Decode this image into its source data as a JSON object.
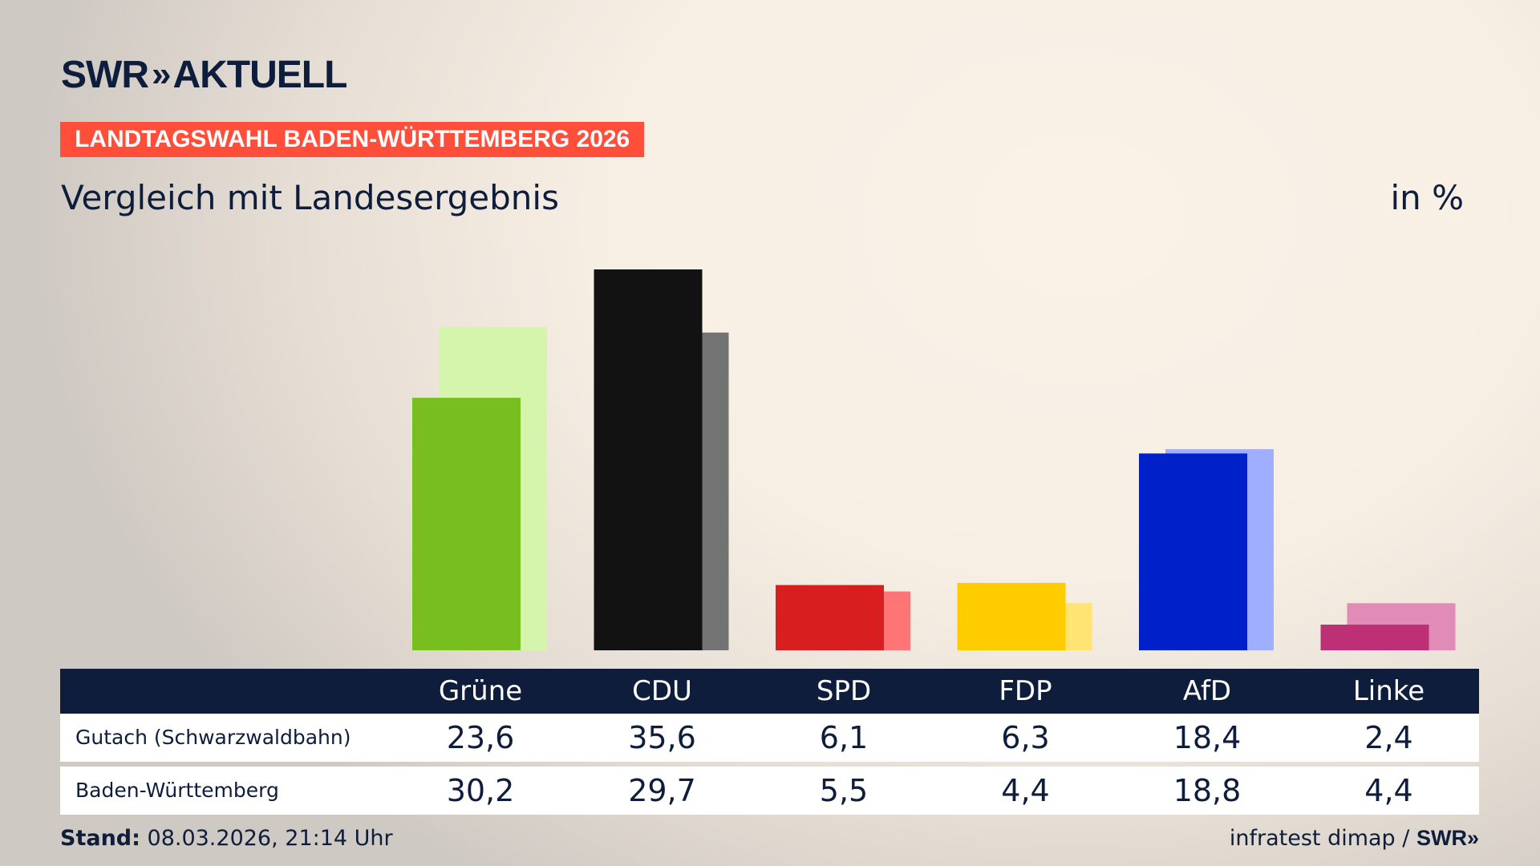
{
  "header": {
    "logo": "SWR AKTUELL",
    "logo_parts": [
      "SWR",
      "»",
      "AKTUELL"
    ],
    "banner": "LANDTAGSWAHL BADEN-WÜRTTEMBERG 2026",
    "subtitle": "Vergleich mit Landesergebnis",
    "unit": "in %"
  },
  "chart_data": {
    "type": "bar",
    "title": "Vergleich mit Landesergebnis",
    "ylabel": "in %",
    "categories": [
      "Grüne",
      "CDU",
      "SPD",
      "FDP",
      "AfD",
      "Linke"
    ],
    "series": [
      {
        "name": "Gutach (Schwarzwaldbahn)",
        "values": [
          23.6,
          35.6,
          6.1,
          6.3,
          18.4,
          2.4
        ],
        "colors": [
          "#78BE1E",
          "#121212",
          "#D81E1E",
          "#FFCC00",
          "#0021C9",
          "#BE3075"
        ]
      },
      {
        "name": "Baden-Württemberg",
        "values": [
          30.2,
          29.7,
          5.5,
          4.4,
          18.8,
          4.4
        ],
        "colors": [
          "#D6F5AC",
          "#737373",
          "#FF7575",
          "#FFE373",
          "#A0AEFF",
          "#E08CB7"
        ]
      }
    ],
    "ylim": [
      0,
      35.6
    ],
    "grid": false
  },
  "table": {
    "headers": [
      "Grüne",
      "CDU",
      "SPD",
      "FDP",
      "AfD",
      "Linke"
    ],
    "rows": [
      {
        "label": "Gutach (Schwarzwaldbahn)",
        "values": [
          "23,6",
          "35,6",
          "6,1",
          "6,3",
          "18,4",
          "2,4"
        ]
      },
      {
        "label": "Baden-Württemberg",
        "values": [
          "30,2",
          "29,7",
          "5,5",
          "4,4",
          "18,8",
          "4,4"
        ]
      }
    ]
  },
  "footer": {
    "stand_label": "Stand:",
    "stand_value": "08.03.2026, 21:14 Uhr",
    "source": "infratest dimap /",
    "source_logo": "SWR»"
  }
}
